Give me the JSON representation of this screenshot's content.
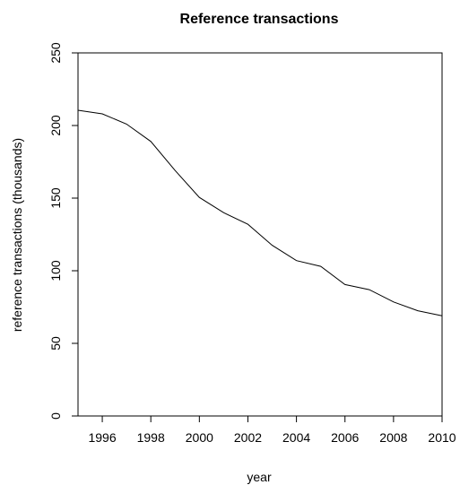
{
  "chart_data": {
    "type": "line",
    "title": "Reference transactions",
    "xlabel": "year",
    "ylabel": "reference transactions (thousands)",
    "xlim": [
      1995,
      2010
    ],
    "ylim": [
      0,
      250
    ],
    "x_ticks": [
      1996,
      1998,
      2000,
      2002,
      2004,
      2006,
      2008,
      2010
    ],
    "y_ticks": [
      0,
      50,
      100,
      150,
      200,
      250
    ],
    "grid": false,
    "series": [
      {
        "x": [
          1995,
          1996,
          1997,
          1998,
          1999,
          2000,
          2001,
          2002,
          2003,
          2004,
          2005,
          2006,
          2007,
          2008,
          2009,
          2010
        ],
        "values": [
          210.5,
          208,
          201,
          189,
          169,
          150.5,
          140,
          132,
          117.5,
          107,
          103,
          90.5,
          87,
          78.5,
          72.5,
          69
        ]
      }
    ],
    "line_color": "#000000"
  }
}
